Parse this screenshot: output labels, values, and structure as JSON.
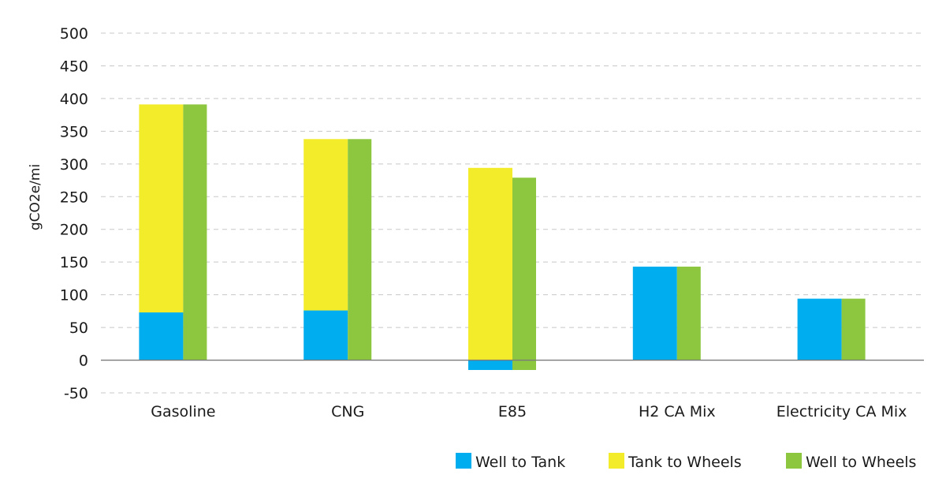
{
  "chart_data": {
    "type": "bar",
    "stacked": true,
    "title": "",
    "xlabel": "",
    "ylabel": "gCO2e/mi",
    "ylim": [
      -50,
      500
    ],
    "yticks": [
      -50,
      0,
      50,
      100,
      150,
      200,
      250,
      300,
      350,
      400,
      450,
      500
    ],
    "grid": true,
    "legend_position": "bottom-right",
    "categories": [
      "Gasoline",
      "CNG",
      "E85",
      "H2 CA Mix",
      "Electricity CA Mix"
    ],
    "series": [
      {
        "name": "Well to Tank",
        "values": [
          73,
          76,
          -15,
          143,
          94
        ],
        "color": "#00aeef",
        "stack": "detail"
      },
      {
        "name": "Tank to Wheels",
        "values": [
          318,
          262,
          294,
          0,
          0
        ],
        "color": "#f2ec2b",
        "stack": "detail"
      },
      {
        "name": "Well to Wheels",
        "values": [
          391,
          338,
          279,
          143,
          94
        ],
        "color": "#8dc63f",
        "stack": "total"
      }
    ]
  }
}
